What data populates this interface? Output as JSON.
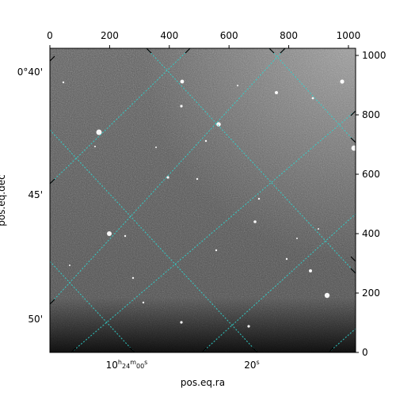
{
  "chart_data": {
    "type": "image",
    "xlabel": "pos.eq.ra",
    "ylabel": "pos.eq.dec",
    "colormap": "grayscale",
    "grid_color": "#2fd4cf",
    "pixel_axis_top": {
      "range": [
        0,
        1024
      ],
      "ticks": [
        0,
        200,
        400,
        600,
        800,
        1000
      ],
      "tick_labels": [
        "0",
        "200",
        "400",
        "600",
        "800",
        "1000"
      ]
    },
    "pixel_axis_right": {
      "range": [
        0,
        1024
      ],
      "ticks": [
        0,
        200,
        400,
        600,
        800,
        1000
      ],
      "tick_labels": [
        "0",
        "200",
        "400",
        "600",
        "800",
        "1000"
      ]
    },
    "ra_axis_bottom": {
      "tick_labels": [
        {
          "base": "10",
          "h": "h",
          "hh": "24",
          "m": "m",
          "mm": "00",
          "s": "s"
        },
        {
          "base": "20",
          "s": "s"
        }
      ]
    },
    "dec_axis_left": {
      "tick_labels": [
        {
          "base": "0°40",
          "unit": "'"
        },
        {
          "base": "45",
          "unit": "'"
        },
        {
          "base": "50",
          "unit": "'"
        }
      ]
    }
  }
}
